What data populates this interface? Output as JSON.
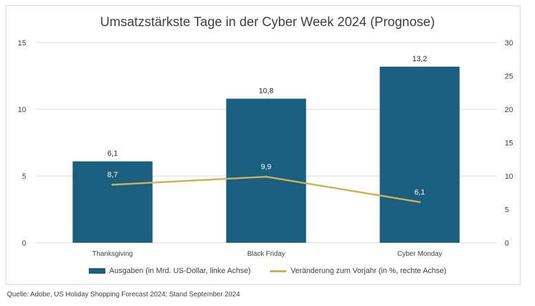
{
  "chart_data": {
    "type": "bar",
    "title": "Umsatzstärkste Tage in der Cyber Week 2024 (Prognose)",
    "categories": [
      "Thanksgiving",
      "Black Friday",
      "Cyber Monday"
    ],
    "series": [
      {
        "name": "Ausgaben (in Mrd. US-Dollar, linke Achse)",
        "type": "bar",
        "axis": "left",
        "values": [
          6.1,
          10.8,
          13.2
        ],
        "labels": [
          "6,1",
          "10,8",
          "13,2"
        ],
        "color": "#1a5e80"
      },
      {
        "name": "Veränderung zum Vorjahr (in %, rechte Achse)",
        "type": "line",
        "axis": "right",
        "values": [
          8.7,
          9.9,
          6.1
        ],
        "labels": [
          "8,7",
          "9,9",
          "6,1"
        ],
        "color": "#c9b35a"
      }
    ],
    "y_left": {
      "ylim": [
        0,
        15
      ],
      "ticks": [
        "0",
        "5",
        "10",
        "15"
      ],
      "tick_values": [
        0,
        5,
        10,
        15
      ]
    },
    "y_right": {
      "ylim": [
        0,
        30
      ],
      "ticks": [
        "0",
        "5",
        "10",
        "15",
        "20",
        "25",
        "30"
      ],
      "tick_values": [
        0,
        5,
        10,
        15,
        20,
        25,
        30
      ]
    },
    "grid": true,
    "legend_position": "bottom"
  },
  "source": "Quelle: Adobe, US Holiday Shopping Forecast 2024; Stand September 2024"
}
